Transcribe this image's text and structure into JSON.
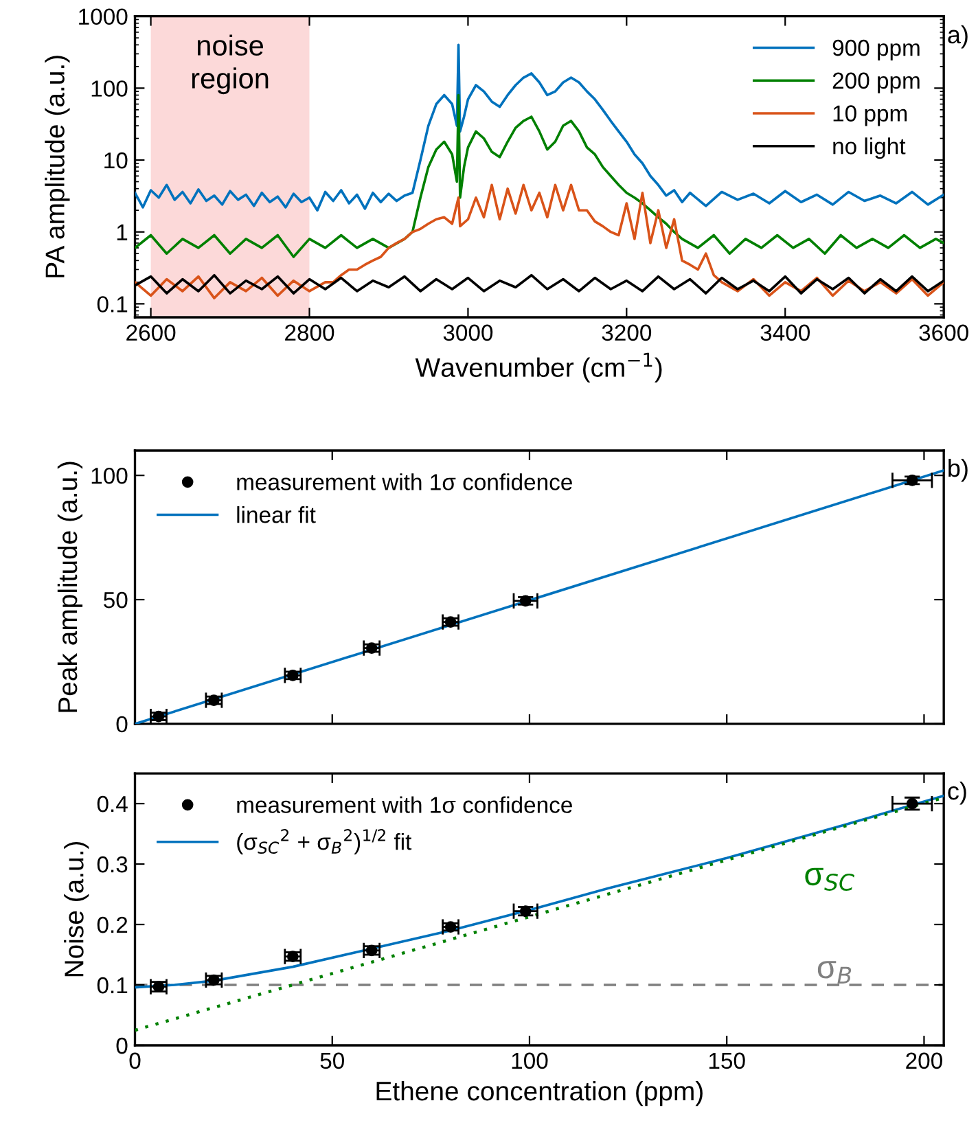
{
  "chart_data": [
    {
      "type": "line",
      "xlabel": "Wavenumber (cm$^{−1}$)",
      "ylabel": "PA amplitude (a.u.)",
      "log": "y",
      "xlim": [
        2580,
        3600
      ],
      "xticks": [
        2600,
        2800,
        3000,
        3200,
        3400,
        3600
      ],
      "ylim": [
        0.065,
        1000
      ],
      "yticks": [
        0.1,
        1,
        10,
        100,
        1000
      ],
      "legend": "top right",
      "grid": false,
      "line_style": "solid",
      "bands": [
        {
          "axis": "x",
          "from": 2600,
          "to": 2800,
          "label": "noise\nregion",
          "color": "#fcd9d9"
        }
      ],
      "annotations": [
        "a)"
      ],
      "series": [
        {
          "name": "900 ppm",
          "color": "#0072bd",
          "x": [
            2580,
            2590,
            2600,
            2610,
            2620,
            2630,
            2640,
            2650,
            2660,
            2670,
            2680,
            2690,
            2700,
            2710,
            2720,
            2730,
            2740,
            2750,
            2760,
            2770,
            2780,
            2790,
            2800,
            2810,
            2820,
            2830,
            2840,
            2850,
            2860,
            2870,
            2880,
            2890,
            2900,
            2910,
            2920,
            2930,
            2940,
            2950,
            2960,
            2970,
            2980,
            2986,
            2988,
            2990,
            2995,
            3000,
            3010,
            3020,
            3030,
            3040,
            3050,
            3060,
            3070,
            3080,
            3090,
            3100,
            3110,
            3120,
            3130,
            3140,
            3150,
            3160,
            3170,
            3180,
            3190,
            3200,
            3210,
            3220,
            3230,
            3240,
            3250,
            3260,
            3270,
            3280,
            3300,
            3320,
            3340,
            3360,
            3380,
            3400,
            3420,
            3440,
            3460,
            3480,
            3500,
            3520,
            3540,
            3560,
            3580,
            3600
          ],
          "values": [
            3.5,
            2.2,
            3.8,
            3,
            4.5,
            2.8,
            3.6,
            2.5,
            3.9,
            2.7,
            3.2,
            2.4,
            3.7,
            2.8,
            3.3,
            2.3,
            3.5,
            2.6,
            3.1,
            2.2,
            3.4,
            2.6,
            3.0,
            2.0,
            3.6,
            2.7,
            3.8,
            2.5,
            3.3,
            2.1,
            3.5,
            2.6,
            3.4,
            2.7,
            3.2,
            3.5,
            10,
            30,
            60,
            80,
            60,
            30,
            400,
            25,
            40,
            70,
            110,
            90,
            65,
            55,
            80,
            110,
            140,
            160,
            120,
            80,
            90,
            120,
            140,
            120,
            90,
            70,
            50,
            35,
            25,
            18,
            12,
            9,
            6,
            4.5,
            3.2,
            3.8,
            2.6,
            3.5,
            2.3,
            3.6,
            2.8,
            3.4,
            2.5,
            3.7,
            2.6,
            3.3,
            2.4,
            3.6,
            2.7,
            3.2,
            2.5,
            3.6,
            2.4,
            3.3
          ]
        },
        {
          "name": "200 ppm",
          "color": "#008000",
          "x": [
            2580,
            2600,
            2620,
            2640,
            2660,
            2680,
            2700,
            2720,
            2740,
            2760,
            2780,
            2800,
            2820,
            2840,
            2860,
            2880,
            2900,
            2920,
            2930,
            2940,
            2950,
            2960,
            2970,
            2980,
            2986,
            2988,
            2990,
            2995,
            3000,
            3010,
            3020,
            3030,
            3040,
            3050,
            3060,
            3070,
            3080,
            3090,
            3100,
            3110,
            3120,
            3130,
            3140,
            3150,
            3160,
            3170,
            3180,
            3190,
            3200,
            3210,
            3220,
            3230,
            3240,
            3250,
            3260,
            3270,
            3290,
            3310,
            3330,
            3350,
            3370,
            3390,
            3410,
            3430,
            3450,
            3470,
            3490,
            3510,
            3530,
            3550,
            3570,
            3590,
            3600
          ],
          "values": [
            0.6,
            0.9,
            0.5,
            0.8,
            0.6,
            0.9,
            0.5,
            0.8,
            0.6,
            0.9,
            0.45,
            0.8,
            0.6,
            0.9,
            0.6,
            0.8,
            0.6,
            0.8,
            1,
            3,
            8,
            14,
            18,
            12,
            5,
            80,
            3,
            8,
            15,
            25,
            20,
            13,
            11,
            18,
            28,
            35,
            40,
            25,
            14,
            18,
            30,
            35,
            25,
            15,
            12,
            8,
            6,
            4.5,
            3.5,
            3,
            2.5,
            2,
            1.6,
            1.3,
            1.0,
            0.8,
            0.6,
            0.9,
            0.5,
            0.8,
            0.6,
            0.9,
            0.6,
            0.8,
            0.5,
            0.9,
            0.6,
            0.8,
            0.6,
            0.9,
            0.6,
            0.8,
            0.7
          ]
        },
        {
          "name": "10 ppm",
          "color": "#d95319",
          "x": [
            2580,
            2600,
            2620,
            2640,
            2660,
            2680,
            2700,
            2720,
            2740,
            2760,
            2780,
            2800,
            2820,
            2830,
            2840,
            2850,
            2860,
            2870,
            2880,
            2890,
            2900,
            2910,
            2920,
            2930,
            2940,
            2950,
            2960,
            2970,
            2980,
            2988,
            2990,
            3000,
            3010,
            3020,
            3030,
            3040,
            3050,
            3060,
            3070,
            3080,
            3090,
            3100,
            3110,
            3120,
            3130,
            3140,
            3150,
            3160,
            3170,
            3180,
            3190,
            3200,
            3210,
            3220,
            3230,
            3240,
            3250,
            3260,
            3270,
            3280,
            3290,
            3300,
            3310,
            3320,
            3340,
            3360,
            3380,
            3400,
            3420,
            3440,
            3460,
            3480,
            3500,
            3520,
            3540,
            3560,
            3580,
            3600
          ],
          "values": [
            0.2,
            0.13,
            0.22,
            0.15,
            0.24,
            0.12,
            0.2,
            0.15,
            0.23,
            0.13,
            0.21,
            0.15,
            0.2,
            0.2,
            0.25,
            0.3,
            0.3,
            0.35,
            0.4,
            0.45,
            0.6,
            0.7,
            0.8,
            1.0,
            1.1,
            1.3,
            1.5,
            1.6,
            1.3,
            3,
            1.2,
            1.5,
            3,
            1.6,
            4.5,
            1.5,
            4,
            1.8,
            4.5,
            2,
            3.5,
            1.6,
            4.5,
            2,
            4.5,
            2,
            2,
            1.4,
            1.2,
            1.0,
            0.9,
            2.5,
            0.8,
            3.5,
            0.7,
            2,
            0.6,
            1.5,
            0.4,
            0.35,
            0.3,
            0.5,
            0.25,
            0.2,
            0.15,
            0.22,
            0.13,
            0.2,
            0.15,
            0.23,
            0.13,
            0.21,
            0.15,
            0.2,
            0.14,
            0.22,
            0.13,
            0.2
          ]
        },
        {
          "name": "no light",
          "color": "#000000",
          "x": [
            2580,
            2600,
            2620,
            2640,
            2660,
            2680,
            2700,
            2720,
            2740,
            2760,
            2780,
            2800,
            2820,
            2840,
            2860,
            2880,
            2900,
            2920,
            2940,
            2960,
            2980,
            3000,
            3020,
            3040,
            3060,
            3080,
            3100,
            3120,
            3140,
            3160,
            3180,
            3200,
            3220,
            3240,
            3260,
            3280,
            3300,
            3320,
            3340,
            3360,
            3380,
            3400,
            3420,
            3440,
            3460,
            3480,
            3500,
            3520,
            3540,
            3560,
            3580,
            3600
          ],
          "values": [
            0.18,
            0.24,
            0.14,
            0.22,
            0.15,
            0.25,
            0.14,
            0.21,
            0.16,
            0.24,
            0.14,
            0.22,
            0.16,
            0.23,
            0.15,
            0.21,
            0.17,
            0.24,
            0.15,
            0.22,
            0.16,
            0.23,
            0.15,
            0.21,
            0.17,
            0.25,
            0.16,
            0.22,
            0.15,
            0.23,
            0.16,
            0.21,
            0.15,
            0.24,
            0.16,
            0.22,
            0.14,
            0.23,
            0.16,
            0.21,
            0.15,
            0.24,
            0.14,
            0.22,
            0.16,
            0.23,
            0.14,
            0.22,
            0.15,
            0.24,
            0.15,
            0.21
          ]
        }
      ]
    },
    {
      "type": "scatter",
      "ylabel": "Peak amplitude (a.u.)",
      "xlim": [
        0,
        205
      ],
      "xticks": [
        0,
        50,
        100,
        150,
        200
      ],
      "ylim": [
        0,
        110
      ],
      "yticks": [
        0,
        50,
        100
      ],
      "tick_labels": "y",
      "legend": "top left",
      "grid": false,
      "annotations": [
        "b)"
      ],
      "series": [
        {
          "name": "measurement with 1σ confidence",
          "color": "#000000",
          "marker": "circle",
          "x": [
            6,
            20,
            40,
            60,
            80,
            99,
            197
          ],
          "values": [
            3,
            9.5,
            19.5,
            30.5,
            41,
            49.5,
            98
          ],
          "errors": [
            1.5,
            1.5,
            1.5,
            1.5,
            1.5,
            1.5,
            1.5
          ],
          "xerrors": [
            2,
            2,
            2,
            2,
            2,
            3,
            5
          ]
        },
        {
          "name": "linear fit",
          "type": "line",
          "color": "#0072bd",
          "line_style": "solid",
          "x": [
            0,
            205
          ],
          "values": [
            0,
            102
          ]
        }
      ]
    },
    {
      "type": "scatter",
      "xlabel": "Ethene concentration (ppm)",
      "ylabel": "Noise (a.u.)",
      "xlim": [
        0,
        205
      ],
      "xticks": [
        0,
        50,
        100,
        150,
        200
      ],
      "ylim": [
        0,
        0.45
      ],
      "yticks": [
        0,
        0.1,
        0.2,
        0.3,
        0.4
      ],
      "legend": "top left",
      "grid": false,
      "annotations": [
        "c)"
      ],
      "ref_lines": [
        {
          "axis": "y",
          "value": 0.1,
          "label": "σ$_{B}$",
          "color": "#808080",
          "line_style": "dashed"
        }
      ],
      "series": [
        {
          "name": "measurement with 1σ confidence",
          "color": "#000000",
          "marker": "circle",
          "x": [
            6,
            20,
            40,
            60,
            80,
            99,
            197
          ],
          "values": [
            0.097,
            0.108,
            0.147,
            0.157,
            0.196,
            0.222,
            0.4
          ],
          "errors": [
            0.008,
            0.007,
            0.007,
            0.007,
            0.006,
            0.007,
            0.01
          ],
          "xerrors": [
            2,
            2,
            2,
            2,
            2,
            3,
            5
          ]
        },
        {
          "name": "(σ$_{SC}$$^{2}$ + σ$_{B}$$^{2}$)$^{1/2}$ fit",
          "type": "line",
          "color": "#0072bd",
          "line_style": "solid",
          "x": [
            0,
            10,
            20,
            40,
            60,
            80,
            100,
            120,
            150,
            180,
            205
          ],
          "values": [
            0.096,
            0.1,
            0.107,
            0.13,
            0.16,
            0.19,
            0.224,
            0.26,
            0.31,
            0.365,
            0.413
          ]
        },
        {
          "name": "σ$_{SC}$",
          "type": "line",
          "color": "#008000",
          "line_style": "dotted",
          "x": [
            0,
            205
          ],
          "values": [
            0.025,
            0.41
          ]
        }
      ]
    }
  ]
}
